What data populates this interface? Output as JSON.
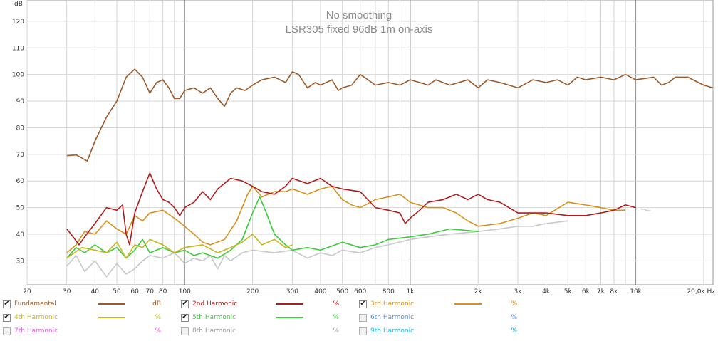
{
  "chart_data": {
    "type": "line",
    "title": "No smoothing",
    "subtitle": "LSR305 fixed 96dB 1m on-axis",
    "ylabel": "dB",
    "xunit": "Hz",
    "x_scale": "log",
    "xlim": [
      20,
      22000
    ],
    "ylim": [
      21,
      128
    ],
    "grid": true,
    "y_ticks": [
      30,
      40,
      50,
      60,
      70,
      80,
      90,
      100,
      110,
      120
    ],
    "x_tick_labels": [
      {
        "v": 20,
        "t": "20"
      },
      {
        "v": 30,
        "t": "30"
      },
      {
        "v": 40,
        "t": "40"
      },
      {
        "v": 50,
        "t": "50"
      },
      {
        "v": 60,
        "t": "60"
      },
      {
        "v": 70,
        "t": "70"
      },
      {
        "v": 80,
        "t": "80"
      },
      {
        "v": 100,
        "t": "100"
      },
      {
        "v": 200,
        "t": "200"
      },
      {
        "v": 300,
        "t": "300"
      },
      {
        "v": 400,
        "t": "400"
      },
      {
        "v": 500,
        "t": "500"
      },
      {
        "v": 600,
        "t": "600"
      },
      {
        "v": 800,
        "t": "800"
      },
      {
        "v": 1000,
        "t": "1k"
      },
      {
        "v": 2000,
        "t": "2k"
      },
      {
        "v": 3000,
        "t": "3k"
      },
      {
        "v": 4000,
        "t": "4k"
      },
      {
        "v": 5000,
        "t": "5k"
      },
      {
        "v": 6000,
        "t": "6k"
      },
      {
        "v": 7000,
        "t": "7k"
      },
      {
        "v": 8000,
        "t": "8k"
      },
      {
        "v": 10000,
        "t": "10k"
      },
      {
        "v": 20000,
        "t": "20,0k Hz"
      }
    ],
    "series": [
      {
        "name": "Fundamental",
        "color": "#9c5a2a",
        "points": [
          [
            30,
            69.5
          ],
          [
            33,
            69.8
          ],
          [
            37,
            67.5
          ],
          [
            40,
            75
          ],
          [
            45,
            84
          ],
          [
            50,
            90
          ],
          [
            55,
            99
          ],
          [
            60,
            102
          ],
          [
            65,
            99
          ],
          [
            70,
            93
          ],
          [
            75,
            97
          ],
          [
            80,
            98
          ],
          [
            85,
            95
          ],
          [
            90,
            91
          ],
          [
            95,
            91
          ],
          [
            100,
            94
          ],
          [
            110,
            95
          ],
          [
            120,
            93
          ],
          [
            130,
            95
          ],
          [
            140,
            91
          ],
          [
            150,
            88
          ],
          [
            160,
            93
          ],
          [
            170,
            95
          ],
          [
            185,
            94
          ],
          [
            200,
            96
          ],
          [
            220,
            98
          ],
          [
            250,
            99
          ],
          [
            280,
            97
          ],
          [
            300,
            101
          ],
          [
            320,
            100
          ],
          [
            350,
            95
          ],
          [
            380,
            97
          ],
          [
            400,
            96
          ],
          [
            450,
            98
          ],
          [
            480,
            94
          ],
          [
            500,
            95
          ],
          [
            550,
            96
          ],
          [
            600,
            100
          ],
          [
            650,
            98
          ],
          [
            700,
            96
          ],
          [
            800,
            97
          ],
          [
            900,
            96
          ],
          [
            1000,
            98
          ],
          [
            1100,
            97
          ],
          [
            1200,
            96
          ],
          [
            1300,
            98
          ],
          [
            1500,
            96
          ],
          [
            1800,
            98
          ],
          [
            2000,
            95
          ],
          [
            2200,
            98
          ],
          [
            2500,
            97
          ],
          [
            3000,
            95
          ],
          [
            3500,
            98
          ],
          [
            4000,
            97
          ],
          [
            4500,
            98
          ],
          [
            5000,
            96
          ],
          [
            5500,
            99
          ],
          [
            6000,
            98
          ],
          [
            7000,
            99
          ],
          [
            8000,
            98
          ],
          [
            9000,
            100
          ],
          [
            10000,
            98
          ],
          [
            12000,
            99
          ],
          [
            13000,
            96
          ],
          [
            14000,
            97
          ],
          [
            15000,
            99
          ],
          [
            17000,
            99
          ],
          [
            20000,
            96
          ],
          [
            22000,
            95
          ]
        ]
      },
      {
        "name": "2nd Harmonic",
        "color": "#b01c1c",
        "points": [
          [
            30,
            42
          ],
          [
            32,
            39
          ],
          [
            34,
            36
          ],
          [
            36,
            39
          ],
          [
            40,
            44
          ],
          [
            45,
            50
          ],
          [
            50,
            49
          ],
          [
            53,
            51
          ],
          [
            55,
            40
          ],
          [
            57,
            36
          ],
          [
            60,
            48
          ],
          [
            65,
            56
          ],
          [
            70,
            63
          ],
          [
            75,
            57
          ],
          [
            80,
            53
          ],
          [
            85,
            52
          ],
          [
            90,
            50
          ],
          [
            95,
            47
          ],
          [
            100,
            50
          ],
          [
            110,
            52
          ],
          [
            120,
            56
          ],
          [
            130,
            53
          ],
          [
            140,
            57
          ],
          [
            160,
            61
          ],
          [
            180,
            60
          ],
          [
            200,
            58
          ],
          [
            220,
            56
          ],
          [
            250,
            55
          ],
          [
            280,
            58
          ],
          [
            300,
            61
          ],
          [
            350,
            59
          ],
          [
            400,
            61
          ],
          [
            450,
            58
          ],
          [
            500,
            57
          ],
          [
            600,
            56
          ],
          [
            700,
            50
          ],
          [
            800,
            49
          ],
          [
            900,
            48
          ],
          [
            950,
            44
          ],
          [
            1000,
            46
          ],
          [
            1100,
            49
          ],
          [
            1200,
            52
          ],
          [
            1400,
            53
          ],
          [
            1600,
            55
          ],
          [
            1800,
            53
          ],
          [
            2000,
            55
          ],
          [
            2200,
            53
          ],
          [
            2500,
            52
          ],
          [
            3000,
            48
          ],
          [
            3500,
            48
          ],
          [
            4000,
            48
          ],
          [
            5000,
            47
          ],
          [
            6000,
            47
          ],
          [
            7000,
            48
          ],
          [
            8000,
            49
          ],
          [
            9000,
            51
          ],
          [
            10000,
            50
          ]
        ]
      },
      {
        "name": "3rd Harmonic",
        "color": "#d8901c",
        "points": [
          [
            30,
            33
          ],
          [
            33,
            36
          ],
          [
            36,
            41
          ],
          [
            40,
            40
          ],
          [
            45,
            45
          ],
          [
            50,
            42
          ],
          [
            55,
            40
          ],
          [
            60,
            47
          ],
          [
            65,
            45
          ],
          [
            70,
            48
          ],
          [
            80,
            49
          ],
          [
            90,
            46
          ],
          [
            100,
            43
          ],
          [
            110,
            40
          ],
          [
            120,
            37
          ],
          [
            130,
            36
          ],
          [
            150,
            38
          ],
          [
            170,
            45
          ],
          [
            190,
            55
          ],
          [
            200,
            58
          ],
          [
            220,
            54
          ],
          [
            250,
            56
          ],
          [
            280,
            56
          ],
          [
            300,
            57
          ],
          [
            350,
            55
          ],
          [
            400,
            57
          ],
          [
            450,
            58
          ],
          [
            500,
            53
          ],
          [
            550,
            51
          ],
          [
            600,
            50
          ],
          [
            700,
            53
          ],
          [
            800,
            54
          ],
          [
            900,
            55
          ],
          [
            1000,
            52
          ],
          [
            1200,
            50
          ],
          [
            1400,
            50
          ],
          [
            1600,
            48
          ],
          [
            1800,
            45
          ],
          [
            2000,
            43
          ],
          [
            2500,
            44
          ],
          [
            3000,
            46
          ],
          [
            3500,
            48
          ],
          [
            4000,
            47
          ],
          [
            5000,
            52
          ],
          [
            6000,
            51
          ],
          [
            7000,
            50
          ],
          [
            8000,
            49
          ],
          [
            9000,
            49
          ]
        ]
      },
      {
        "name": "4th Harmonic",
        "color": "#c8b41e",
        "points": [
          [
            30,
            31
          ],
          [
            35,
            35
          ],
          [
            40,
            34
          ],
          [
            45,
            33
          ],
          [
            50,
            37
          ],
          [
            55,
            31
          ],
          [
            60,
            36
          ],
          [
            65,
            35
          ],
          [
            70,
            38
          ],
          [
            80,
            36
          ],
          [
            90,
            33
          ],
          [
            100,
            35
          ],
          [
            120,
            36
          ],
          [
            140,
            33
          ],
          [
            160,
            35
          ],
          [
            180,
            37
          ],
          [
            200,
            40
          ],
          [
            220,
            36
          ],
          [
            250,
            38
          ],
          [
            280,
            35
          ],
          [
            300,
            36
          ]
        ]
      },
      {
        "name": "5th Harmonic",
        "color": "#3ccc3c",
        "points": [
          [
            30,
            31
          ],
          [
            33,
            35
          ],
          [
            36,
            33
          ],
          [
            40,
            36
          ],
          [
            45,
            33
          ],
          [
            50,
            35
          ],
          [
            55,
            31
          ],
          [
            60,
            34
          ],
          [
            65,
            38
          ],
          [
            70,
            33
          ],
          [
            80,
            35
          ],
          [
            90,
            33
          ],
          [
            100,
            34
          ],
          [
            110,
            32
          ],
          [
            120,
            33
          ],
          [
            140,
            31
          ],
          [
            160,
            34
          ],
          [
            180,
            38
          ],
          [
            200,
            48
          ],
          [
            215,
            54
          ],
          [
            230,
            48
          ],
          [
            250,
            40
          ],
          [
            280,
            36
          ],
          [
            300,
            34
          ],
          [
            350,
            35
          ],
          [
            400,
            34
          ],
          [
            500,
            37
          ],
          [
            600,
            35
          ],
          [
            700,
            36
          ],
          [
            800,
            38
          ],
          [
            1000,
            39
          ],
          [
            1200,
            40
          ],
          [
            1500,
            42
          ],
          [
            2000,
            41
          ]
        ]
      },
      {
        "name": "8th Harmonic",
        "color": "#c8c8c8",
        "points": [
          [
            30,
            28
          ],
          [
            33,
            32
          ],
          [
            36,
            26
          ],
          [
            40,
            30
          ],
          [
            45,
            24
          ],
          [
            50,
            29
          ],
          [
            55,
            25
          ],
          [
            60,
            27
          ],
          [
            65,
            30
          ],
          [
            70,
            32
          ],
          [
            80,
            31
          ],
          [
            90,
            33
          ],
          [
            100,
            29
          ],
          [
            110,
            31
          ],
          [
            120,
            30
          ],
          [
            130,
            32
          ],
          [
            140,
            27
          ],
          [
            150,
            32
          ],
          [
            160,
            30
          ],
          [
            180,
            33
          ],
          [
            200,
            34
          ],
          [
            250,
            33
          ],
          [
            300,
            34
          ],
          [
            350,
            31
          ],
          [
            400,
            33
          ],
          [
            450,
            32
          ],
          [
            500,
            34
          ],
          [
            600,
            33
          ],
          [
            700,
            35
          ],
          [
            800,
            36
          ],
          [
            1000,
            38
          ],
          [
            1200,
            39
          ],
          [
            1500,
            40
          ],
          [
            2000,
            41
          ],
          [
            2500,
            42
          ],
          [
            3000,
            43
          ],
          [
            3500,
            43
          ],
          [
            4000,
            44
          ],
          [
            5000,
            45
          ]
        ]
      }
    ],
    "annotations": [
      {
        "x": 10500,
        "y": 49.5,
        "color": "#d0d0d0"
      },
      {
        "x": 11000,
        "y": 49,
        "color": "#d0d0d0"
      }
    ]
  },
  "legend": [
    {
      "label": "Fundamental",
      "unit": "dB",
      "color": "#9c5a2a",
      "checked": true
    },
    {
      "label": "2nd Harmonic",
      "unit": "%",
      "color": "#b01c1c",
      "checked": true
    },
    {
      "label": "3rd Harmonic",
      "unit": "%",
      "color": "#d8901c",
      "checked": true
    },
    {
      "label": "4th Harmonic",
      "unit": "%",
      "color": "#c8b41e",
      "checked": true
    },
    {
      "label": "5th Harmonic",
      "unit": "%",
      "color": "#3ccc3c",
      "checked": true
    },
    {
      "label": "6th Harmonic",
      "unit": "%",
      "color": "#5a8ee0",
      "checked": false
    },
    {
      "label": "7th Harmonic",
      "unit": "%",
      "color": "#e060e0",
      "checked": false
    },
    {
      "label": "8th Harmonic",
      "unit": "%",
      "color": "#a0a0a0",
      "checked": false
    },
    {
      "label": "9th Harmonic",
      "unit": "%",
      "color": "#20b8e0",
      "checked": false
    }
  ]
}
